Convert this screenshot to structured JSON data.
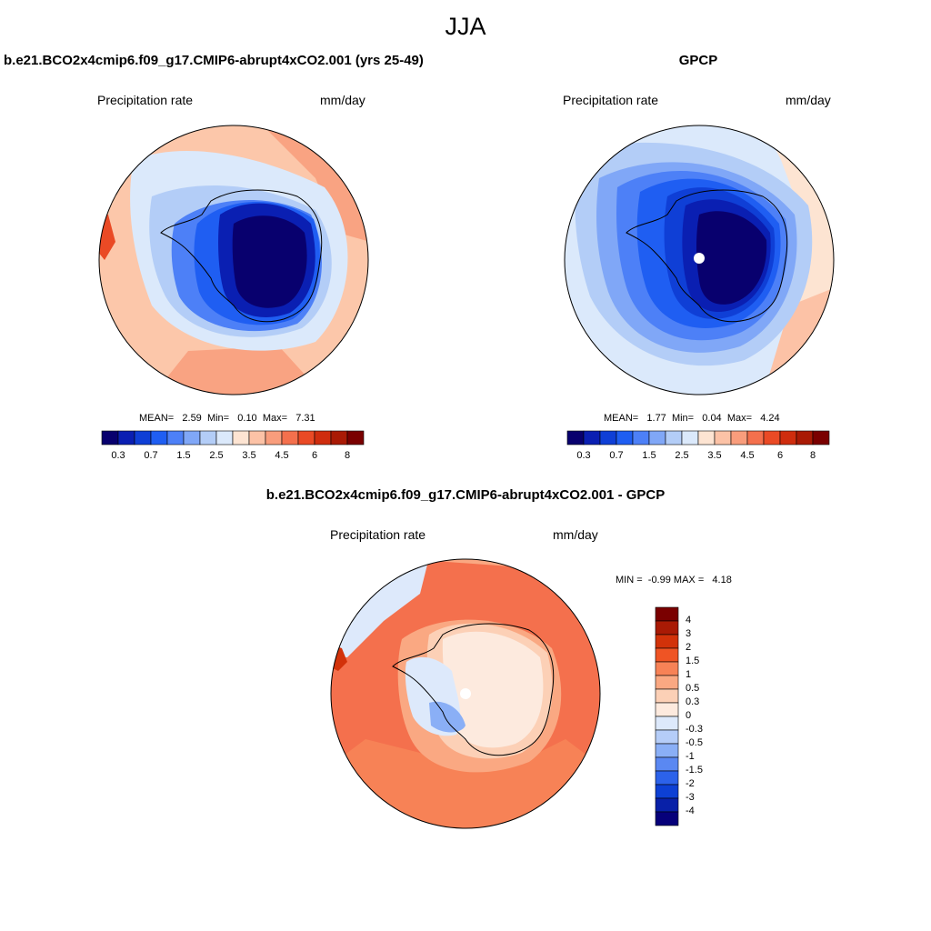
{
  "figure": {
    "season": "JJA",
    "panels": [
      {
        "title": "b.e21.BCO2x4cmip6.f09_g17.CMIP6-abrupt4xCO2.001 (yrs 25-49)",
        "left_label": "Precipitation rate",
        "right_label": "mm/day",
        "stats": {
          "mean_label": "MEAN=",
          "mean": "2.59",
          "min_label": "Min=",
          "min": "0.10",
          "max_label": "Max=",
          "max": "7.31"
        }
      },
      {
        "title": "GPCP",
        "left_label": "Precipitation rate",
        "right_label": "mm/day",
        "stats": {
          "mean_label": "MEAN=",
          "mean": "1.77",
          "min_label": "Min=",
          "min": "0.04",
          "max_label": "Max=",
          "max": "4.24"
        }
      },
      {
        "title": "b.e21.BCO2x4cmip6.f09_g17.CMIP6-abrupt4xCO2.001 - GPCP",
        "left_label": "Precipitation rate",
        "right_label": "mm/day",
        "minmax": {
          "min_label": "MIN =",
          "min": "-0.99",
          "max_label": "MAX =",
          "max": "4.18"
        }
      }
    ],
    "colorbar_abs": {
      "colors": [
        "#08006e",
        "#0a1fb2",
        "#0f3fd6",
        "#1f5ef2",
        "#4d80f7",
        "#80a7f7",
        "#b3cdf7",
        "#dbe9fb",
        "#fde4d2",
        "#fcc2a6",
        "#f99d7c",
        "#f4704d",
        "#ea4a25",
        "#cf2d0e",
        "#a91a05",
        "#7a0000"
      ],
      "tick_labels": [
        "0.3",
        "0.7",
        "1.5",
        "2.5",
        "3.5",
        "4.5",
        "6",
        "8"
      ]
    },
    "colorbar_diff": {
      "colors_top_to_bottom": [
        "#7a0000",
        "#a91a05",
        "#d2320a",
        "#ef5424",
        "#f78256",
        "#faa882",
        "#fcd0b6",
        "#fdeade",
        "#dde9fb",
        "#b5cdf8",
        "#8aaff6",
        "#5a88f2",
        "#2c62ea",
        "#0d40d4",
        "#0820a8",
        "#06007a"
      ],
      "tick_labels": [
        "4",
        "3",
        "2",
        "1.5",
        "1",
        "0.5",
        "0.3",
        "0",
        "-0.3",
        "-0.5",
        "-1",
        "-1.5",
        "-2",
        "-3",
        "-4"
      ]
    }
  }
}
